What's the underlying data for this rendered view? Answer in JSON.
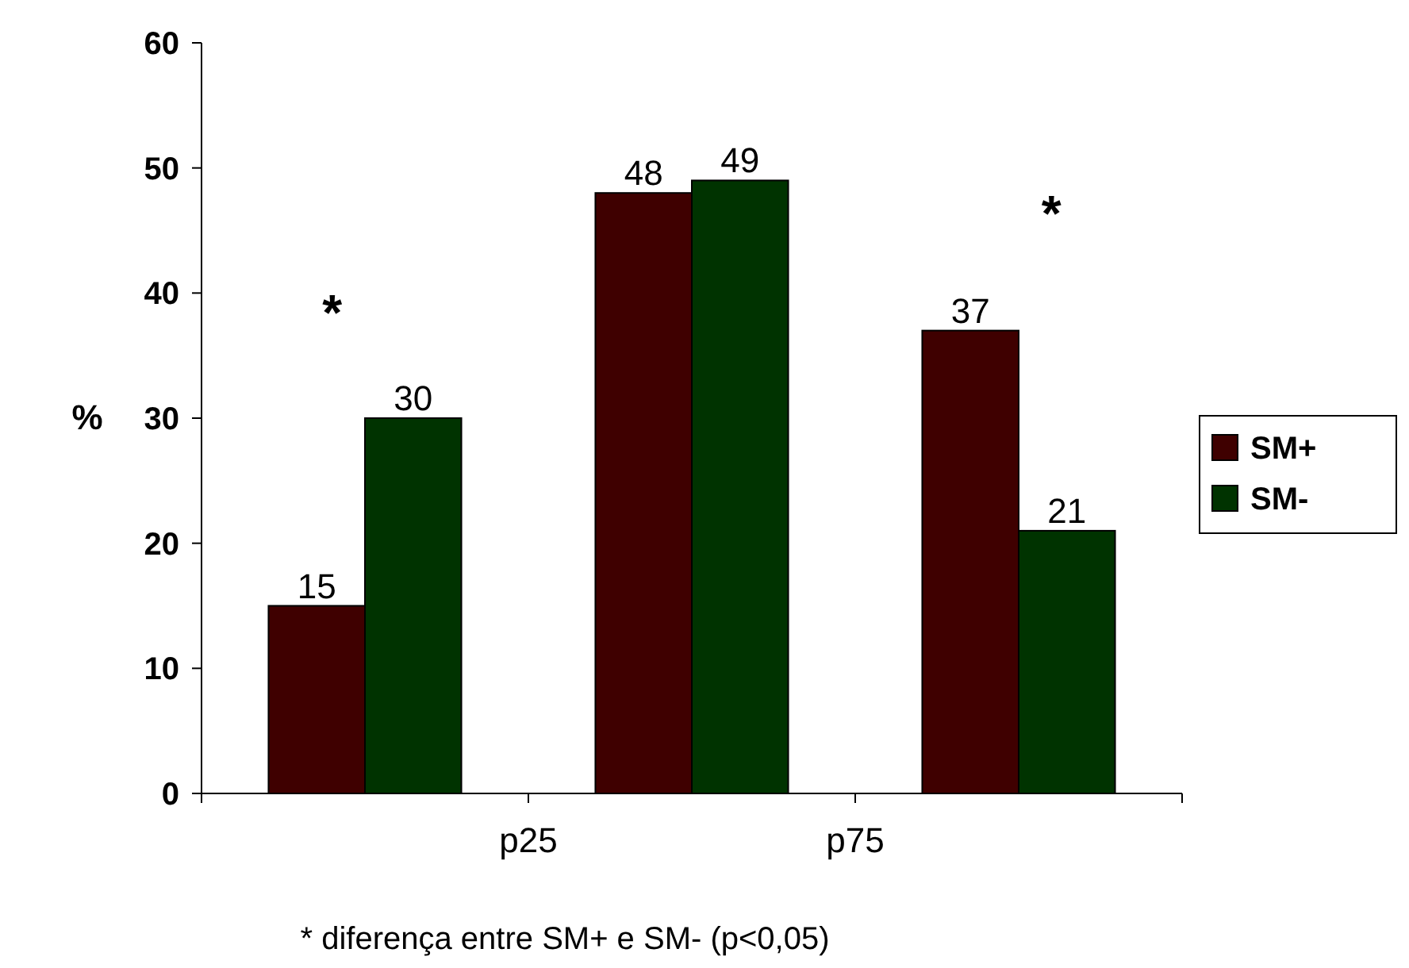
{
  "chart_data": {
    "type": "bar",
    "ylabel": "%",
    "categories": [
      null,
      null,
      null
    ],
    "ylim": [
      0,
      60
    ],
    "yticks": [
      0,
      10,
      20,
      30,
      40,
      50,
      60
    ],
    "series": [
      {
        "name": "SM+",
        "color": "#3f0000",
        "values": [
          15,
          48,
          37
        ]
      },
      {
        "name": "SM-",
        "color": "#003300",
        "values": [
          30,
          49,
          21
        ]
      }
    ],
    "data_labels": true,
    "grid": false,
    "legend": "right",
    "annotations": [
      "p25",
      "p75",
      "*",
      "*",
      "* diferença entre SM+ e SM- (p<0,05)"
    ]
  }
}
